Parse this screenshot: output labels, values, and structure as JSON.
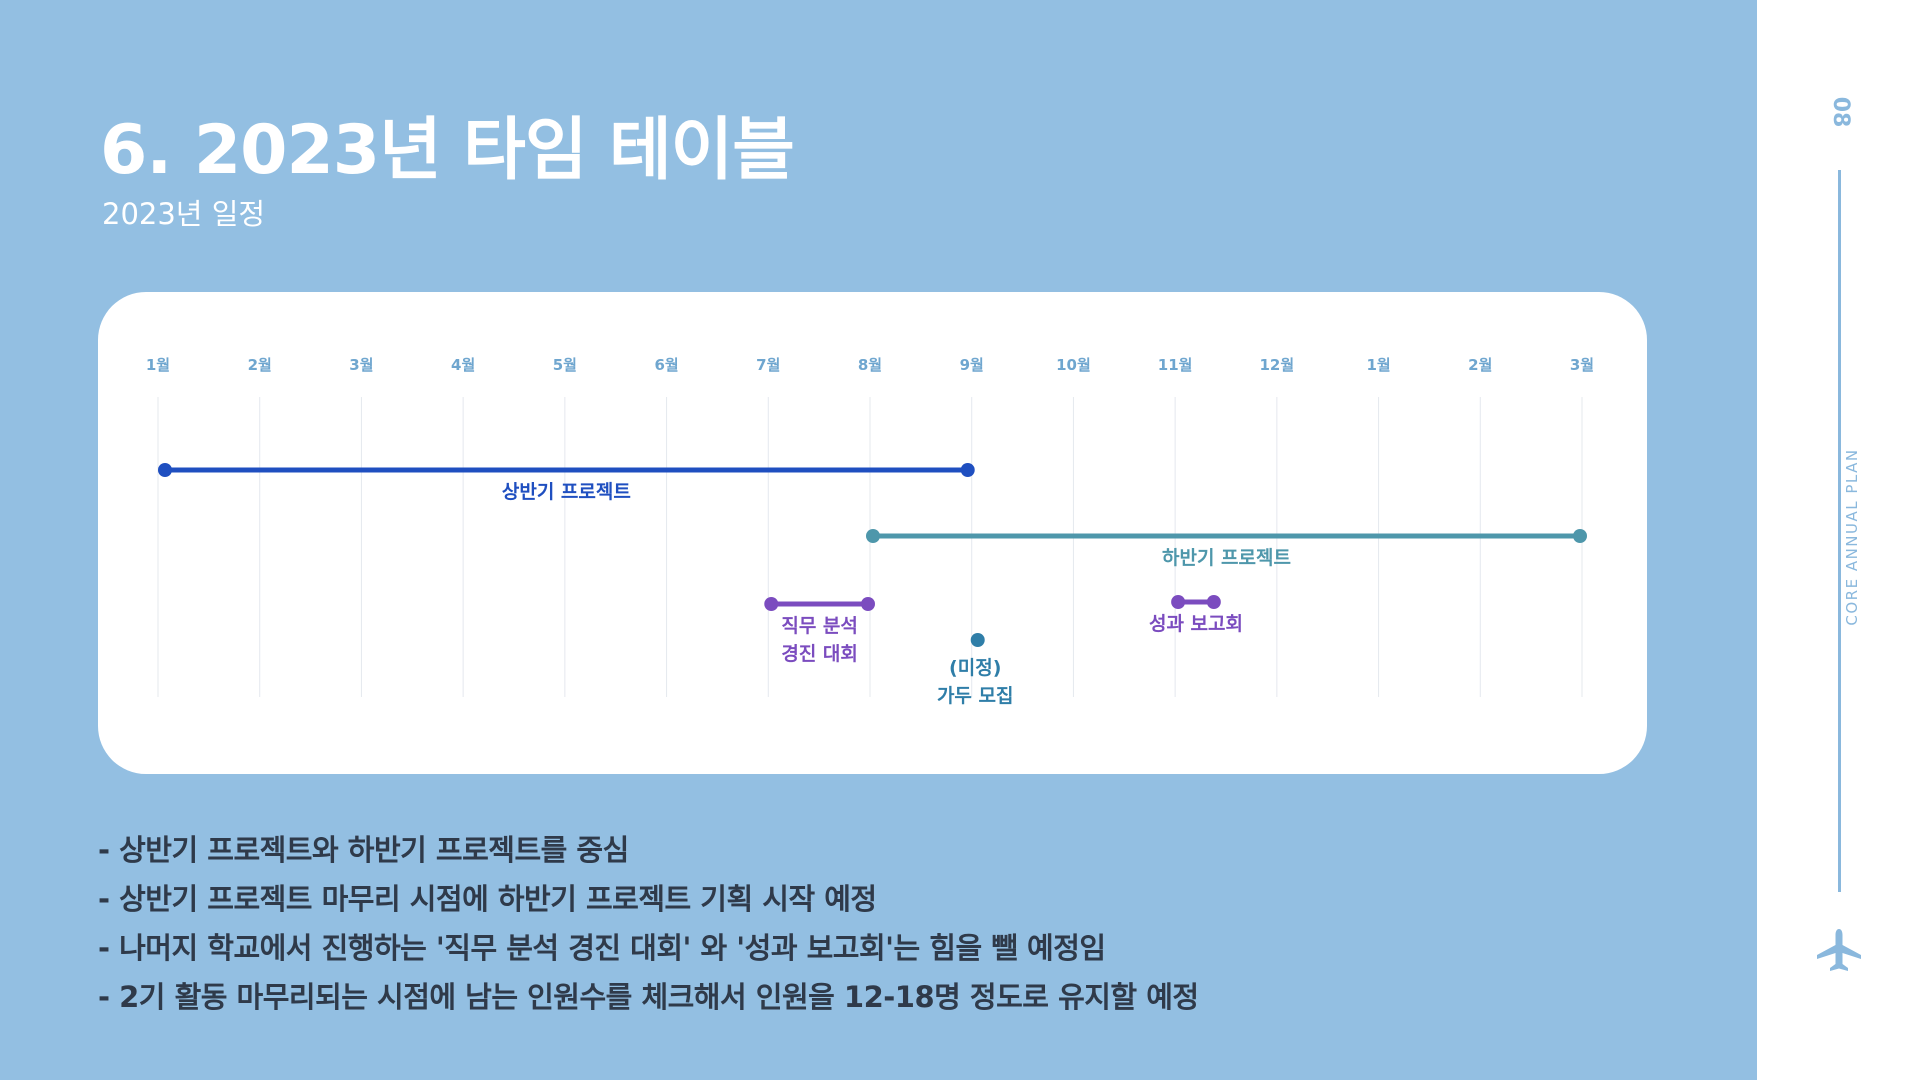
{
  "header": {
    "title": "6. 2023년 타임 테이블",
    "subtitle": "2023년 일정"
  },
  "chart_data": {
    "type": "timeline",
    "months": [
      "1월",
      "2월",
      "3월",
      "4월",
      "5월",
      "6월",
      "7월",
      "8월",
      "9월",
      "10월",
      "11월",
      "12월",
      "1월",
      "2월",
      "3월"
    ],
    "tasks": [
      {
        "name": "상반기 프로젝트",
        "start": 0,
        "end": 8,
        "color": "#1f4fc0"
      },
      {
        "name": "하반기 프로젝트",
        "start": 7,
        "end": 14,
        "color": "#4e97ab"
      },
      {
        "name": "직무 분석\n경진 대회",
        "start": 6,
        "end": 7,
        "color": "#7b4cbf"
      },
      {
        "name": "(미정)\n가두 모집",
        "start": 8,
        "end": 8,
        "color": "#2f7ea8"
      },
      {
        "name": "성과 보고회",
        "start": 10,
        "end": 10.4,
        "color": "#7b4cbf"
      }
    ]
  },
  "notes": [
    "- 상반기 프로젝트와 하반기 프로젝트를 중심",
    "- 상반기 프로젝트 마무리 시점에 하반기 프로젝트 기획 시작 예정",
    "- 나머지 학교에서 진행하는 '직무 분석 경진 대회' 와 '성과 보고회'는 힘을 뺄 예정임",
    "- 2기 활동 마무리되는 시점에 남는 인원수를 체크해서 인원을 12-18명 정도로 유지할 예정"
  ],
  "sidebar": {
    "page_number": "08",
    "label": "CORE ANNUAL PLAN",
    "icon": "airplane-icon",
    "color": "#8ab8dd"
  },
  "colors": {
    "background": "#93bfe2",
    "month_label": "#6fa6cf",
    "gridline": "#e4e8ee"
  }
}
